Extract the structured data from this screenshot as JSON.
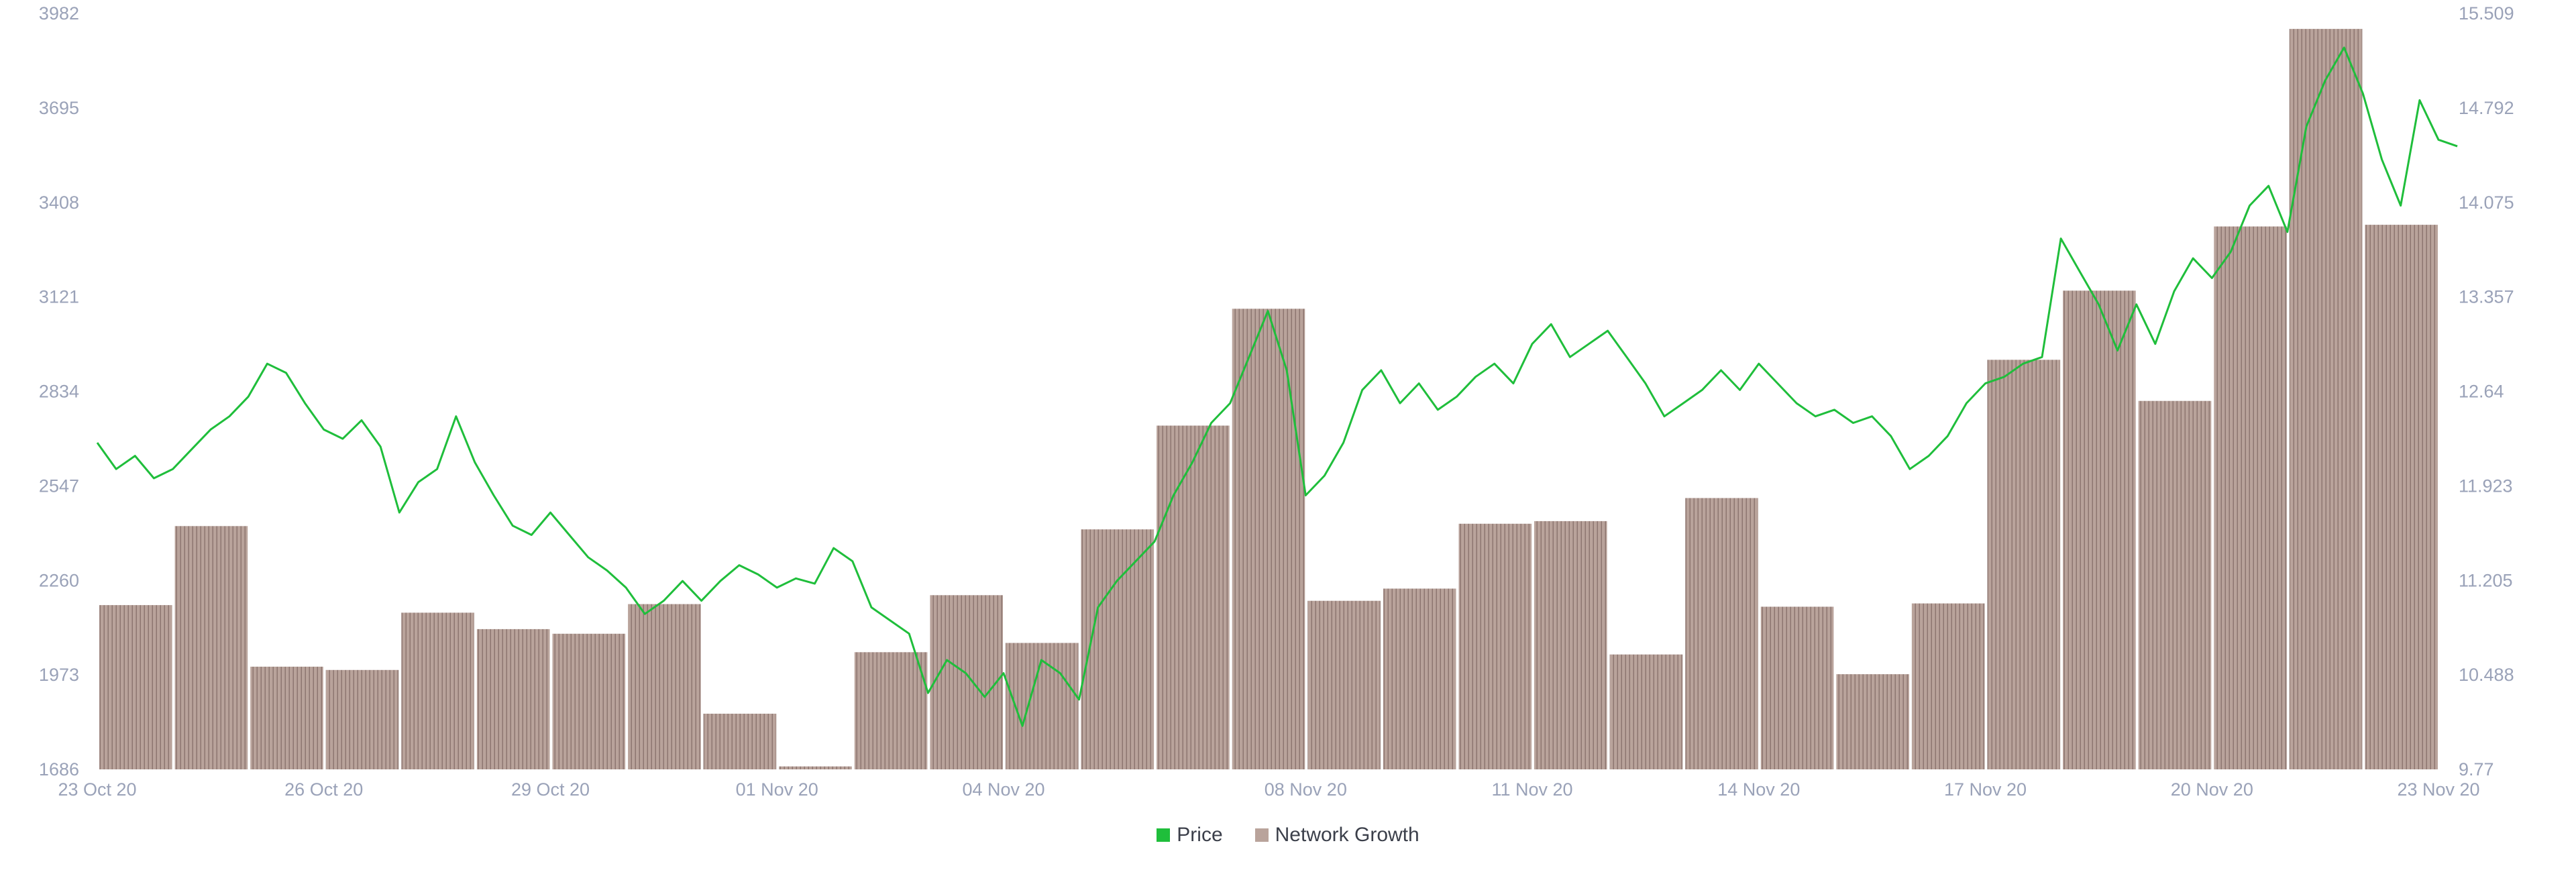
{
  "chart_data": {
    "type": "bar+line",
    "legend": [
      {
        "name": "Price",
        "color": "#1fbe3b"
      },
      {
        "name": "Network Growth",
        "color": "#b9a39b"
      }
    ],
    "left_axis": {
      "ticks": [
        "3982",
        "3695",
        "3408",
        "3121",
        "2834",
        "2547",
        "2260",
        "1973",
        "1686"
      ],
      "range": [
        1686,
        3982
      ]
    },
    "right_axis": {
      "ticks": [
        "15.509",
        "14.792",
        "14.075",
        "13.357",
        "12.64",
        "11.923",
        "11.205",
        "10.488",
        "9.77"
      ],
      "range": [
        9.77,
        15.509
      ]
    },
    "x_axis": {
      "range": [
        "2020-10-23",
        "2020-11-23"
      ],
      "ticks": [
        {
          "label": "23 Oct 20",
          "date": "2020-10-23"
        },
        {
          "label": "26 Oct 20",
          "date": "2020-10-26"
        },
        {
          "label": "29 Oct 20",
          "date": "2020-10-29"
        },
        {
          "label": "01 Nov 20",
          "date": "2020-11-01"
        },
        {
          "label": "04 Nov 20",
          "date": "2020-11-04"
        },
        {
          "label": "08 Nov 20",
          "date": "2020-11-08"
        },
        {
          "label": "11 Nov 20",
          "date": "2020-11-11"
        },
        {
          "label": "14 Nov 20",
          "date": "2020-11-14"
        },
        {
          "label": "17 Nov 20",
          "date": "2020-11-17"
        },
        {
          "label": "20 Nov 20",
          "date": "2020-11-20"
        },
        {
          "label": "23 Nov 20",
          "date": "2020-11-23"
        }
      ]
    },
    "grid": false,
    "network_growth": {
      "name": "Network Growth",
      "axis": "left",
      "days": [
        "2020-10-23",
        "2020-10-24",
        "2020-10-25",
        "2020-10-26",
        "2020-10-27",
        "2020-10-28",
        "2020-10-29",
        "2020-10-30",
        "2020-10-31",
        "2020-11-01",
        "2020-11-02",
        "2020-11-03",
        "2020-11-04",
        "2020-11-05",
        "2020-11-06",
        "2020-11-07",
        "2020-11-08",
        "2020-11-09",
        "2020-11-10",
        "2020-11-11",
        "2020-11-12",
        "2020-11-13",
        "2020-11-14",
        "2020-11-15",
        "2020-11-16",
        "2020-11-17",
        "2020-11-18",
        "2020-11-19",
        "2020-11-20",
        "2020-11-21",
        "2020-11-22"
      ],
      "values": [
        2185,
        2425,
        1998,
        1988,
        2162,
        2112,
        2098,
        2188,
        1855,
        1695,
        2042,
        2215,
        2070,
        2415,
        2730,
        3085,
        2198,
        2235,
        2432,
        2440,
        2035,
        2510,
        2180,
        1975,
        2190,
        2930,
        3140,
        2805,
        3335,
        3935,
        3340
      ]
    },
    "price": {
      "name": "Price",
      "axis": "right",
      "points": [
        [
          "2020-10-23T00:00",
          12.25
        ],
        [
          "2020-10-23T06:00",
          12.05
        ],
        [
          "2020-10-23T12:00",
          12.15
        ],
        [
          "2020-10-23T18:00",
          11.98
        ],
        [
          "2020-10-24T00:00",
          12.05
        ],
        [
          "2020-10-24T06:00",
          12.2
        ],
        [
          "2020-10-24T12:00",
          12.35
        ],
        [
          "2020-10-24T18:00",
          12.45
        ],
        [
          "2020-10-25T00:00",
          12.6
        ],
        [
          "2020-10-25T06:00",
          12.85
        ],
        [
          "2020-10-25T12:00",
          12.78
        ],
        [
          "2020-10-25T18:00",
          12.55
        ],
        [
          "2020-10-26T00:00",
          12.35
        ],
        [
          "2020-10-26T06:00",
          12.28
        ],
        [
          "2020-10-26T12:00",
          12.42
        ],
        [
          "2020-10-26T18:00",
          12.22
        ],
        [
          "2020-10-27T00:00",
          11.72
        ],
        [
          "2020-10-27T06:00",
          11.95
        ],
        [
          "2020-10-27T12:00",
          12.05
        ],
        [
          "2020-10-27T18:00",
          12.45
        ],
        [
          "2020-10-28T00:00",
          12.1
        ],
        [
          "2020-10-28T06:00",
          11.85
        ],
        [
          "2020-10-28T12:00",
          11.62
        ],
        [
          "2020-10-28T18:00",
          11.55
        ],
        [
          "2020-10-29T00:00",
          11.72
        ],
        [
          "2020-10-29T06:00",
          11.55
        ],
        [
          "2020-10-29T12:00",
          11.38
        ],
        [
          "2020-10-29T18:00",
          11.28
        ],
        [
          "2020-10-30T00:00",
          11.15
        ],
        [
          "2020-10-30T06:00",
          10.95
        ],
        [
          "2020-10-30T12:00",
          11.05
        ],
        [
          "2020-10-30T18:00",
          11.2
        ],
        [
          "2020-10-31T00:00",
          11.05
        ],
        [
          "2020-10-31T06:00",
          11.2
        ],
        [
          "2020-10-31T12:00",
          11.32
        ],
        [
          "2020-10-31T18:00",
          11.25
        ],
        [
          "2020-11-01T00:00",
          11.15
        ],
        [
          "2020-11-01T06:00",
          11.22
        ],
        [
          "2020-11-01T12:00",
          11.18
        ],
        [
          "2020-11-01T18:00",
          11.45
        ],
        [
          "2020-11-02T00:00",
          11.35
        ],
        [
          "2020-11-02T06:00",
          11.0
        ],
        [
          "2020-11-02T12:00",
          10.9
        ],
        [
          "2020-11-02T18:00",
          10.8
        ],
        [
          "2020-11-03T00:00",
          10.35
        ],
        [
          "2020-11-03T06:00",
          10.6
        ],
        [
          "2020-11-03T12:00",
          10.5
        ],
        [
          "2020-11-03T18:00",
          10.32
        ],
        [
          "2020-11-04T00:00",
          10.5
        ],
        [
          "2020-11-04T06:00",
          10.1
        ],
        [
          "2020-11-04T12:00",
          10.6
        ],
        [
          "2020-11-04T18:00",
          10.5
        ],
        [
          "2020-11-05T00:00",
          10.3
        ],
        [
          "2020-11-05T06:00",
          11.0
        ],
        [
          "2020-11-05T12:00",
          11.2
        ],
        [
          "2020-11-05T18:00",
          11.35
        ],
        [
          "2020-11-06T00:00",
          11.5
        ],
        [
          "2020-11-06T06:00",
          11.85
        ],
        [
          "2020-11-06T12:00",
          12.1
        ],
        [
          "2020-11-06T18:00",
          12.4
        ],
        [
          "2020-11-07T00:00",
          12.55
        ],
        [
          "2020-11-07T06:00",
          12.9
        ],
        [
          "2020-11-07T12:00",
          13.25
        ],
        [
          "2020-11-07T18:00",
          12.8
        ],
        [
          "2020-11-08T00:00",
          11.85
        ],
        [
          "2020-11-08T06:00",
          12.0
        ],
        [
          "2020-11-08T12:00",
          12.25
        ],
        [
          "2020-11-08T18:00",
          12.65
        ],
        [
          "2020-11-09T00:00",
          12.8
        ],
        [
          "2020-11-09T06:00",
          12.55
        ],
        [
          "2020-11-09T12:00",
          12.7
        ],
        [
          "2020-11-09T18:00",
          12.5
        ],
        [
          "2020-11-10T00:00",
          12.6
        ],
        [
          "2020-11-10T06:00",
          12.75
        ],
        [
          "2020-11-10T12:00",
          12.85
        ],
        [
          "2020-11-10T18:00",
          12.7
        ],
        [
          "2020-11-11T00:00",
          13.0
        ],
        [
          "2020-11-11T06:00",
          13.15
        ],
        [
          "2020-11-11T12:00",
          12.9
        ],
        [
          "2020-11-11T18:00",
          13.0
        ],
        [
          "2020-11-12T00:00",
          13.1
        ],
        [
          "2020-11-12T06:00",
          12.9
        ],
        [
          "2020-11-12T12:00",
          12.7
        ],
        [
          "2020-11-12T18:00",
          12.45
        ],
        [
          "2020-11-13T00:00",
          12.55
        ],
        [
          "2020-11-13T06:00",
          12.65
        ],
        [
          "2020-11-13T12:00",
          12.8
        ],
        [
          "2020-11-13T18:00",
          12.65
        ],
        [
          "2020-11-14T00:00",
          12.85
        ],
        [
          "2020-11-14T06:00",
          12.7
        ],
        [
          "2020-11-14T12:00",
          12.55
        ],
        [
          "2020-11-14T18:00",
          12.45
        ],
        [
          "2020-11-15T00:00",
          12.5
        ],
        [
          "2020-11-15T06:00",
          12.4
        ],
        [
          "2020-11-15T12:00",
          12.45
        ],
        [
          "2020-11-15T18:00",
          12.3
        ],
        [
          "2020-11-16T00:00",
          12.05
        ],
        [
          "2020-11-16T06:00",
          12.15
        ],
        [
          "2020-11-16T12:00",
          12.3
        ],
        [
          "2020-11-16T18:00",
          12.55
        ],
        [
          "2020-11-17T00:00",
          12.7
        ],
        [
          "2020-11-17T06:00",
          12.75
        ],
        [
          "2020-11-17T12:00",
          12.85
        ],
        [
          "2020-11-17T18:00",
          12.9
        ],
        [
          "2020-11-18T00:00",
          13.8
        ],
        [
          "2020-11-18T06:00",
          13.55
        ],
        [
          "2020-11-18T12:00",
          13.3
        ],
        [
          "2020-11-18T18:00",
          12.95
        ],
        [
          "2020-11-19T00:00",
          13.3
        ],
        [
          "2020-11-19T06:00",
          13.0
        ],
        [
          "2020-11-19T12:00",
          13.4
        ],
        [
          "2020-11-19T18:00",
          13.65
        ],
        [
          "2020-11-20T00:00",
          13.5
        ],
        [
          "2020-11-20T06:00",
          13.7
        ],
        [
          "2020-11-20T12:00",
          14.05
        ],
        [
          "2020-11-20T18:00",
          14.2
        ],
        [
          "2020-11-21T00:00",
          13.85
        ],
        [
          "2020-11-21T06:00",
          14.65
        ],
        [
          "2020-11-21T12:00",
          15.0
        ],
        [
          "2020-11-21T18:00",
          15.25
        ],
        [
          "2020-11-22T00:00",
          14.9
        ],
        [
          "2020-11-22T06:00",
          14.4
        ],
        [
          "2020-11-22T12:00",
          14.05
        ],
        [
          "2020-11-22T18:00",
          14.85
        ],
        [
          "2020-11-23T00:00",
          14.55
        ],
        [
          "2020-11-23T06:00",
          14.5
        ]
      ]
    }
  }
}
